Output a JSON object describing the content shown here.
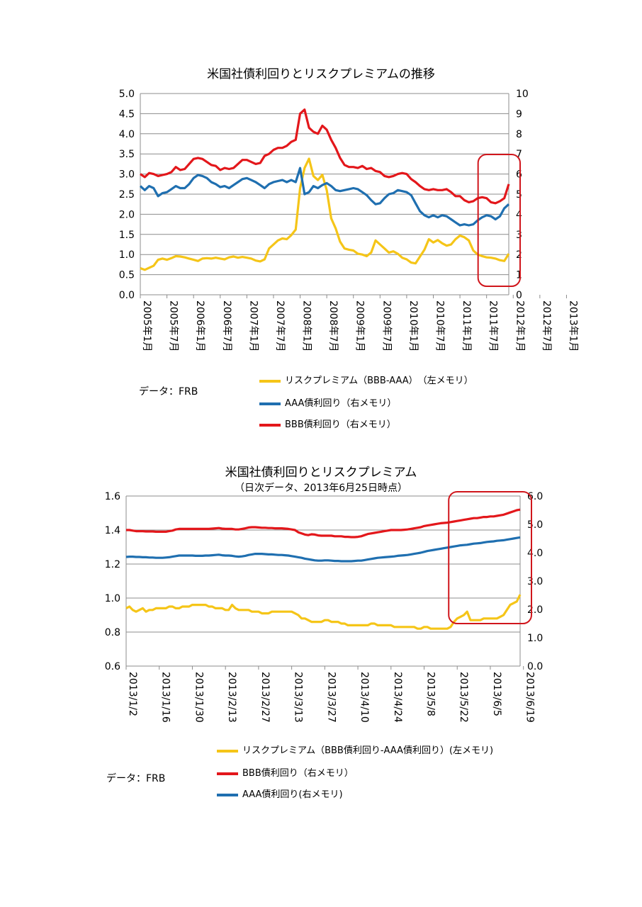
{
  "chart_data": [
    {
      "type": "line",
      "title": "米国社債利回りとリスクプレミアムの推移",
      "source_note": "データ：FRB",
      "x_tick_labels": [
        "2005年1月",
        "2005年7月",
        "2006年1月",
        "2006年7月",
        "2007年1月",
        "2007年7月",
        "2008年1月",
        "2008年7月",
        "2009年1月",
        "2009年7月",
        "2010年1月",
        "2010年7月",
        "2011年1月",
        "2011年7月",
        "2012年1月",
        "2012年7月",
        "2013年1月"
      ],
      "x_points_per_tick": 6,
      "y_left": {
        "ylim": [
          0,
          5
        ],
        "ticks": [
          "0.0",
          "0.5",
          "1.0",
          "1.5",
          "2.0",
          "2.5",
          "3.0",
          "3.5",
          "4.0",
          "4.5",
          "5.0"
        ]
      },
      "y_right": {
        "ylim": [
          0,
          10
        ],
        "ticks": [
          "0",
          "1",
          "2",
          "3",
          "4",
          "5",
          "6",
          "7",
          "8",
          "9",
          "10"
        ]
      },
      "series": [
        {
          "name": "リスクプレミアム（BBB-AAA）　（左メモリ）",
          "color": "#F5C518",
          "axis": "left",
          "values": [
            0.66,
            0.62,
            0.67,
            0.72,
            0.87,
            0.9,
            0.87,
            0.91,
            0.96,
            0.95,
            0.93,
            0.9,
            0.87,
            0.84,
            0.9,
            0.91,
            0.9,
            0.92,
            0.9,
            0.88,
            0.93,
            0.95,
            0.92,
            0.94,
            0.92,
            0.9,
            0.85,
            0.83,
            0.88,
            1.15,
            1.25,
            1.35,
            1.4,
            1.38,
            1.48,
            1.62,
            2.65,
            3.15,
            3.38,
            2.95,
            2.85,
            2.98,
            2.6,
            1.9,
            1.65,
            1.32,
            1.15,
            1.12,
            1.1,
            1.02,
            1.0,
            0.96,
            1.05,
            1.35,
            1.25,
            1.15,
            1.05,
            1.08,
            1.02,
            0.92,
            0.88,
            0.8,
            0.78,
            0.95,
            1.12,
            1.38,
            1.3,
            1.36,
            1.28,
            1.22,
            1.25,
            1.38,
            1.47,
            1.43,
            1.35,
            1.1,
            1.0,
            0.96,
            0.93,
            0.92,
            0.9,
            0.86,
            0.84,
            1.02
          ]
        },
        {
          "name": "AAA債利回り（右メモリ）",
          "color": "#1F6FB0",
          "axis": "right",
          "values": [
            5.4,
            5.2,
            5.4,
            5.3,
            4.9,
            5.05,
            5.1,
            5.25,
            5.4,
            5.3,
            5.3,
            5.5,
            5.8,
            5.95,
            5.9,
            5.8,
            5.6,
            5.5,
            5.35,
            5.4,
            5.3,
            5.45,
            5.6,
            5.75,
            5.8,
            5.7,
            5.6,
            5.45,
            5.3,
            5.5,
            5.6,
            5.65,
            5.7,
            5.6,
            5.7,
            5.6,
            6.3,
            5.0,
            5.1,
            5.4,
            5.3,
            5.45,
            5.55,
            5.4,
            5.2,
            5.15,
            5.2,
            5.25,
            5.3,
            5.25,
            5.1,
            4.95,
            4.7,
            4.5,
            4.55,
            4.8,
            5.0,
            5.05,
            5.2,
            5.15,
            5.1,
            4.95,
            4.55,
            4.15,
            3.95,
            3.85,
            3.95,
            3.85,
            3.95,
            3.9,
            3.75,
            3.6,
            3.45,
            3.5,
            3.45,
            3.5,
            3.7,
            3.85,
            3.95,
            3.9,
            3.75,
            3.9,
            4.3,
            4.5
          ]
        },
        {
          "name": "BBB債利回り（右メモリ）",
          "color": "#E3171B",
          "axis": "right",
          "values": [
            6.0,
            5.85,
            6.05,
            6.0,
            5.9,
            5.95,
            6.0,
            6.1,
            6.35,
            6.2,
            6.25,
            6.5,
            6.75,
            6.8,
            6.75,
            6.6,
            6.45,
            6.4,
            6.2,
            6.3,
            6.25,
            6.3,
            6.5,
            6.7,
            6.7,
            6.6,
            6.5,
            6.55,
            6.9,
            7.0,
            7.2,
            7.3,
            7.3,
            7.4,
            7.6,
            7.7,
            9.0,
            9.2,
            8.3,
            8.1,
            8.0,
            8.4,
            8.2,
            7.7,
            7.3,
            6.8,
            6.45,
            6.35,
            6.35,
            6.3,
            6.4,
            6.25,
            6.3,
            6.15,
            6.1,
            5.9,
            5.85,
            5.9,
            6.0,
            6.05,
            6.0,
            5.75,
            5.6,
            5.4,
            5.25,
            5.2,
            5.25,
            5.2,
            5.2,
            5.25,
            5.1,
            4.9,
            4.9,
            4.7,
            4.6,
            4.65,
            4.8,
            4.85,
            4.8,
            4.6,
            4.55,
            4.65,
            4.8,
            5.5
          ]
        }
      ],
      "highlight_box": {
        "from_index": 78,
        "to_index": 84,
        "color": "#D0161C"
      }
    },
    {
      "type": "line",
      "title": "米国社債利回りとリスクプレミアム",
      "subtitle": "（日次データ、2013年6月25日時点）",
      "source_note": "データ：FRB",
      "x_tick_labels": [
        "2013/1/2",
        "2013/1/16",
        "2013/1/30",
        "2013/2/13",
        "2013/2/27",
        "2013/3/13",
        "2013/3/27",
        "2013/4/10",
        "2013/4/24",
        "2013/5/8",
        "2013/5/22",
        "2013/6/5",
        "2013/6/19"
      ],
      "x_points_per_tick": 10,
      "y_left": {
        "ylim": [
          0.6,
          1.6
        ],
        "ticks": [
          "0.6",
          "0.8",
          "1.0",
          "1.2",
          "1.4",
          "1.6"
        ]
      },
      "y_right": {
        "ylim": [
          0,
          6
        ],
        "ticks": [
          "0.0",
          "1.0",
          "2.0",
          "3.0",
          "4.0",
          "5.0",
          "6.0"
        ]
      },
      "series": [
        {
          "name": "リスクプレミアム（BBB債利回り-AAA債利回り）(左メモリ)",
          "color": "#F5C518",
          "axis": "left",
          "values": [
            0.94,
            0.95,
            0.93,
            0.92,
            0.93,
            0.94,
            0.92,
            0.93,
            0.93,
            0.94,
            0.94,
            0.94,
            0.94,
            0.95,
            0.95,
            0.94,
            0.94,
            0.95,
            0.95,
            0.95,
            0.96,
            0.96,
            0.96,
            0.96,
            0.96,
            0.95,
            0.95,
            0.94,
            0.94,
            0.94,
            0.93,
            0.93,
            0.96,
            0.94,
            0.93,
            0.93,
            0.93,
            0.93,
            0.92,
            0.92,
            0.92,
            0.91,
            0.91,
            0.91,
            0.92,
            0.92,
            0.92,
            0.92,
            0.92,
            0.92,
            0.92,
            0.91,
            0.9,
            0.88,
            0.88,
            0.87,
            0.86,
            0.86,
            0.86,
            0.86,
            0.87,
            0.87,
            0.86,
            0.86,
            0.86,
            0.85,
            0.85,
            0.84,
            0.84,
            0.84,
            0.84,
            0.84,
            0.84,
            0.84,
            0.85,
            0.85,
            0.84,
            0.84,
            0.84,
            0.84,
            0.84,
            0.83,
            0.83,
            0.83,
            0.83,
            0.83,
            0.83,
            0.83,
            0.82,
            0.82,
            0.83,
            0.83,
            0.82,
            0.82,
            0.82,
            0.82,
            0.82,
            0.82,
            0.83,
            0.86,
            0.88,
            0.89,
            0.9,
            0.92,
            0.87,
            0.87,
            0.87,
            0.87,
            0.88,
            0.88,
            0.88,
            0.88,
            0.88,
            0.89,
            0.9,
            0.93,
            0.96,
            0.97,
            0.98,
            1.02
          ]
        },
        {
          "name": "BBB債利回り（右メモリ）",
          "color": "#E3171B",
          "axis": "right",
          "values": [
            4.8,
            4.8,
            4.78,
            4.76,
            4.76,
            4.76,
            4.75,
            4.75,
            4.75,
            4.74,
            4.74,
            4.74,
            4.74,
            4.76,
            4.78,
            4.82,
            4.84,
            4.84,
            4.84,
            4.84,
            4.84,
            4.84,
            4.84,
            4.84,
            4.84,
            4.84,
            4.85,
            4.86,
            4.87,
            4.85,
            4.84,
            4.84,
            4.84,
            4.82,
            4.82,
            4.84,
            4.86,
            4.89,
            4.9,
            4.9,
            4.89,
            4.88,
            4.88,
            4.87,
            4.87,
            4.86,
            4.86,
            4.86,
            4.85,
            4.84,
            4.82,
            4.8,
            4.72,
            4.68,
            4.64,
            4.62,
            4.65,
            4.64,
            4.61,
            4.6,
            4.6,
            4.6,
            4.6,
            4.58,
            4.58,
            4.58,
            4.56,
            4.56,
            4.55,
            4.55,
            4.56,
            4.58,
            4.62,
            4.66,
            4.68,
            4.7,
            4.72,
            4.74,
            4.76,
            4.78,
            4.8,
            4.8,
            4.8,
            4.8,
            4.81,
            4.82,
            4.84,
            4.86,
            4.88,
            4.9,
            4.94,
            4.96,
            4.98,
            5.0,
            5.02,
            5.04,
            5.05,
            5.06,
            5.08,
            5.1,
            5.12,
            5.14,
            5.16,
            5.18,
            5.2,
            5.22,
            5.22,
            5.24,
            5.26,
            5.26,
            5.28,
            5.28,
            5.3,
            5.32,
            5.34,
            5.38,
            5.42,
            5.46,
            5.5,
            5.52
          ]
        },
        {
          "name": "AAA債利回り(右メモリ)",
          "color": "#1F6FB0",
          "axis": "right",
          "values": [
            3.85,
            3.86,
            3.86,
            3.85,
            3.85,
            3.84,
            3.84,
            3.83,
            3.83,
            3.82,
            3.82,
            3.82,
            3.83,
            3.84,
            3.86,
            3.88,
            3.9,
            3.9,
            3.9,
            3.9,
            3.9,
            3.89,
            3.89,
            3.89,
            3.9,
            3.9,
            3.91,
            3.92,
            3.93,
            3.91,
            3.9,
            3.9,
            3.89,
            3.87,
            3.86,
            3.87,
            3.89,
            3.92,
            3.94,
            3.96,
            3.96,
            3.96,
            3.95,
            3.94,
            3.94,
            3.93,
            3.92,
            3.92,
            3.91,
            3.9,
            3.88,
            3.86,
            3.84,
            3.82,
            3.79,
            3.77,
            3.75,
            3.73,
            3.72,
            3.72,
            3.73,
            3.73,
            3.72,
            3.71,
            3.71,
            3.7,
            3.7,
            3.7,
            3.7,
            3.71,
            3.72,
            3.72,
            3.74,
            3.76,
            3.78,
            3.8,
            3.82,
            3.83,
            3.84,
            3.85,
            3.86,
            3.87,
            3.89,
            3.9,
            3.91,
            3.92,
            3.94,
            3.96,
            3.98,
            4.0,
            4.03,
            4.06,
            4.08,
            4.1,
            4.12,
            4.14,
            4.16,
            4.18,
            4.2,
            4.22,
            4.24,
            4.26,
            4.27,
            4.28,
            4.3,
            4.32,
            4.33,
            4.34,
            4.36,
            4.38,
            4.39,
            4.4,
            4.42,
            4.43,
            4.44,
            4.46,
            4.48,
            4.5,
            4.52,
            4.54
          ]
        }
      ],
      "highlight_box": {
        "from_index": 100,
        "to_index": 120,
        "color": "#D0161C"
      }
    }
  ],
  "source_label": "データ：FRB",
  "source_label_2": "データ：FRB"
}
